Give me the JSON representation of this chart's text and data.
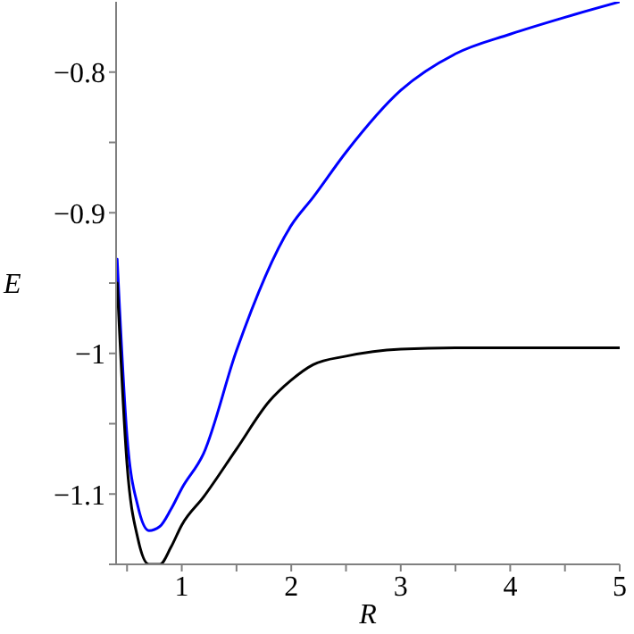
{
  "chart_data": {
    "type": "line",
    "xlabel": "R",
    "ylabel": "E",
    "xlim": [
      0.4,
      5
    ],
    "ylim": [
      -1.15,
      -0.75
    ],
    "xticks": [
      {
        "value": 0.5,
        "label": null
      },
      1,
      {
        "value": 1.5,
        "label": null
      },
      2,
      {
        "value": 2.5,
        "label": null
      },
      3,
      {
        "value": 3.5,
        "label": null
      },
      4,
      {
        "value": 4.5,
        "label": null
      },
      5
    ],
    "yticks": [
      {
        "value": -1.15,
        "label": null
      },
      {
        "value": -1.1,
        "label": "−1.1"
      },
      {
        "value": -1.05,
        "label": null
      },
      {
        "value": -1,
        "label": "−1"
      },
      {
        "value": -0.95,
        "label": null
      },
      {
        "value": -0.9,
        "label": "−0.9"
      },
      {
        "value": -0.85,
        "label": null
      },
      {
        "value": -0.8,
        "label": "−0.8"
      }
    ],
    "grid": false,
    "legend": false,
    "marker": "none",
    "line_style": "solid",
    "series": [
      {
        "color": "#0000ff",
        "x": [
          0.41,
          0.5,
          0.6,
          0.7,
          0.8,
          0.9,
          1,
          1.2,
          1.5,
          2,
          2.2,
          2.5,
          3,
          3.5,
          4,
          4.5,
          5
        ],
        "values": [
          -0.933,
          -1.059,
          -1.109,
          -1.126,
          -1.123,
          -1.111,
          -1.096,
          -1.071,
          -0.998,
          -0.909,
          -0.889,
          -0.857,
          -0.813,
          -0.787,
          -0.773,
          -0.761,
          -0.75
        ]
      },
      {
        "color": "#000000",
        "x": [
          0.41,
          0.5,
          0.6,
          0.7,
          0.8,
          0.9,
          1,
          1.2,
          1.5,
          1.8,
          2,
          2.2,
          2.5,
          3,
          3.5,
          4,
          4.5,
          5
        ],
        "values": [
          -0.95,
          -1.079,
          -1.132,
          -1.15,
          -1.15,
          -1.138,
          -1.122,
          -1.102,
          -1.068,
          -1.034,
          -1.019,
          -1.008,
          -1.002,
          -0.997,
          -0.996,
          -0.996,
          -0.996,
          -0.996
        ]
      }
    ]
  }
}
